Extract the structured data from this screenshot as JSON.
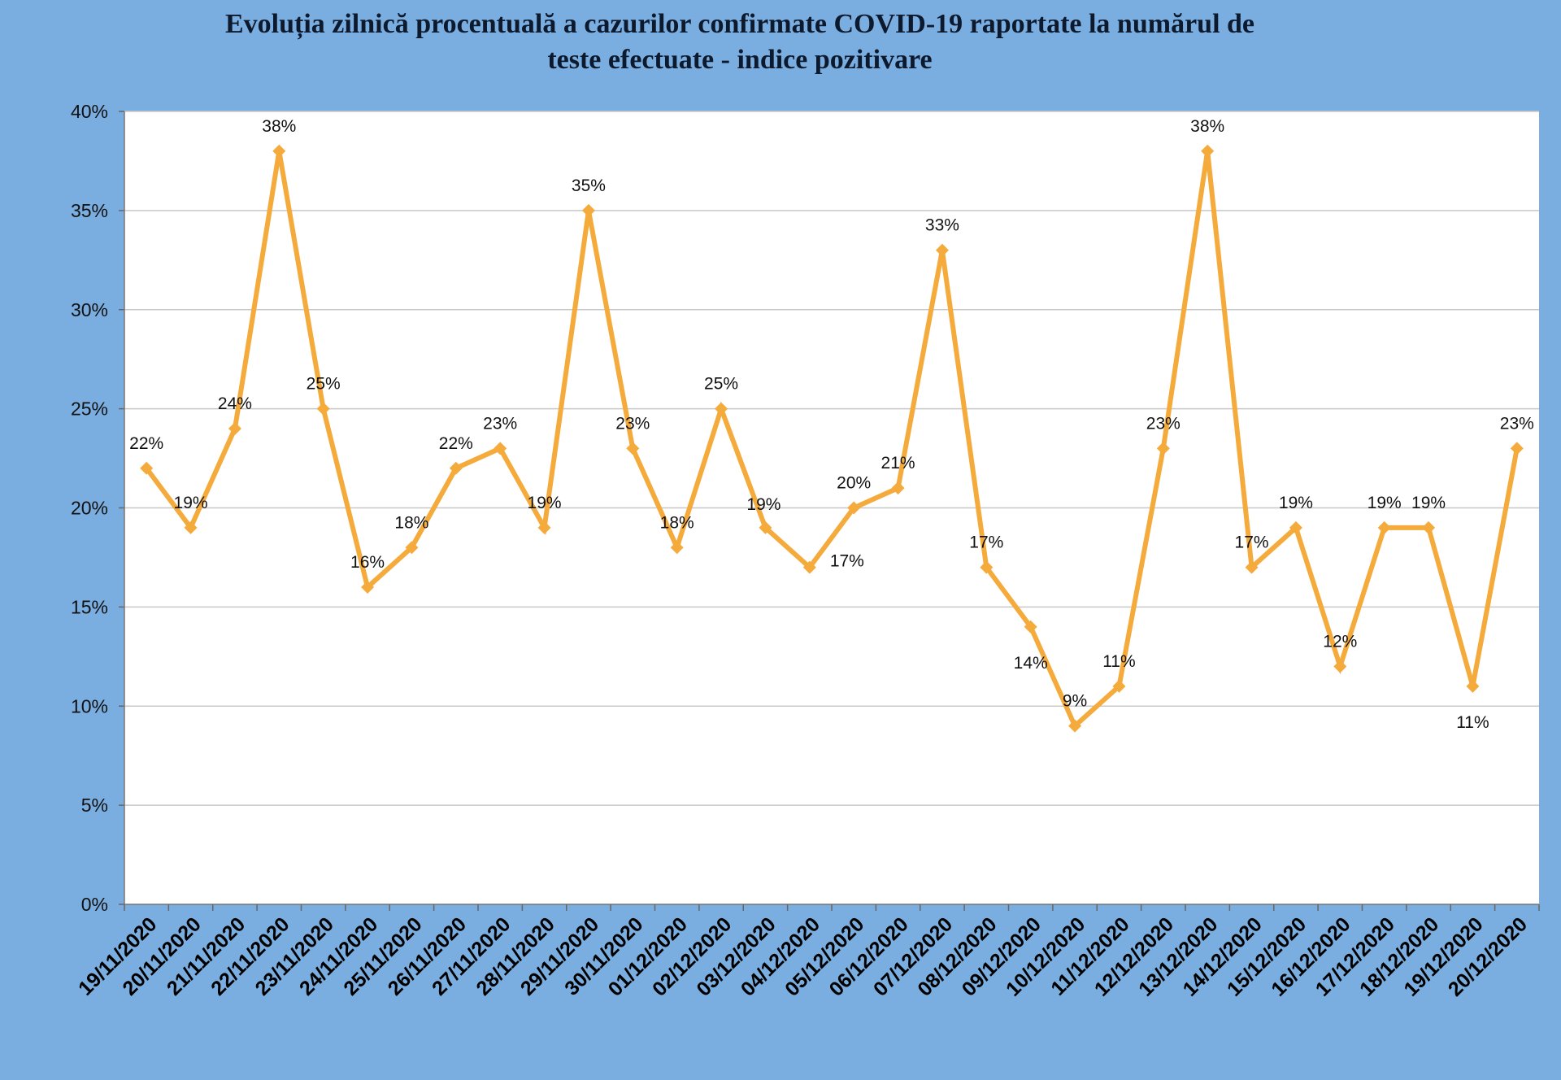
{
  "chart_data": {
    "type": "line",
    "title_line1": "Evoluția zilnică procentuală a cazurilor confirmate COVID-19 raportate la numărul de",
    "title_line2": "teste efectuate - indice pozitivare",
    "categories": [
      "19/11/2020",
      "20/11/2020",
      "21/11/2020",
      "22/11/2020",
      "23/11/2020",
      "24/11/2020",
      "25/11/2020",
      "26/11/2020",
      "27/11/2020",
      "28/11/2020",
      "29/11/2020",
      "30/11/2020",
      "01/12/2020",
      "02/12/2020",
      "03/12/2020",
      "04/12/2020",
      "05/12/2020",
      "06/12/2020",
      "07/12/2020",
      "08/12/2020",
      "09/12/2020",
      "10/12/2020",
      "11/12/2020",
      "12/12/2020",
      "13/12/2020",
      "14/12/2020",
      "15/12/2020",
      "16/12/2020",
      "17/12/2020",
      "18/12/2020",
      "19/12/2020",
      "20/12/2020"
    ],
    "values": [
      22,
      19,
      24,
      38,
      25,
      16,
      18,
      22,
      23,
      19,
      35,
      23,
      18,
      25,
      19,
      17,
      20,
      21,
      33,
      17,
      14,
      9,
      11,
      23,
      38,
      17,
      19,
      12,
      19,
      19,
      11,
      23
    ],
    "data_labels": [
      "22%",
      "19%",
      "24%",
      "38%",
      "25%",
      "16%",
      "18%",
      "22%",
      "23%",
      "19%",
      "35%",
      "23%",
      "18%",
      "25%",
      "19%",
      "17%",
      "20%",
      "21%",
      "33%",
      "17%",
      "14%",
      "9%",
      "11%",
      "23%",
      "38%",
      "17%",
      "19%",
      "12%",
      "19%",
      "19%",
      "11%",
      "23%"
    ],
    "label_position": [
      "above",
      "above",
      "above",
      "above",
      "above",
      "above",
      "above",
      "above",
      "above",
      "above",
      "above",
      "above",
      "above",
      "above",
      "above-right",
      "right",
      "above",
      "above",
      "above",
      "above",
      "below",
      "above",
      "above",
      "above",
      "above",
      "above",
      "above",
      "above",
      "above",
      "above",
      "below",
      "above"
    ],
    "y_ticks": [
      "0%",
      "5%",
      "10%",
      "15%",
      "20%",
      "25%",
      "30%",
      "35%",
      "40%"
    ],
    "ylim": [
      0,
      40
    ],
    "grid": true,
    "colors": {
      "background": "#7aaee0",
      "plot_area": "#ffffff",
      "line": "#f5ab3c",
      "gridline": "#c8c8c8"
    }
  }
}
